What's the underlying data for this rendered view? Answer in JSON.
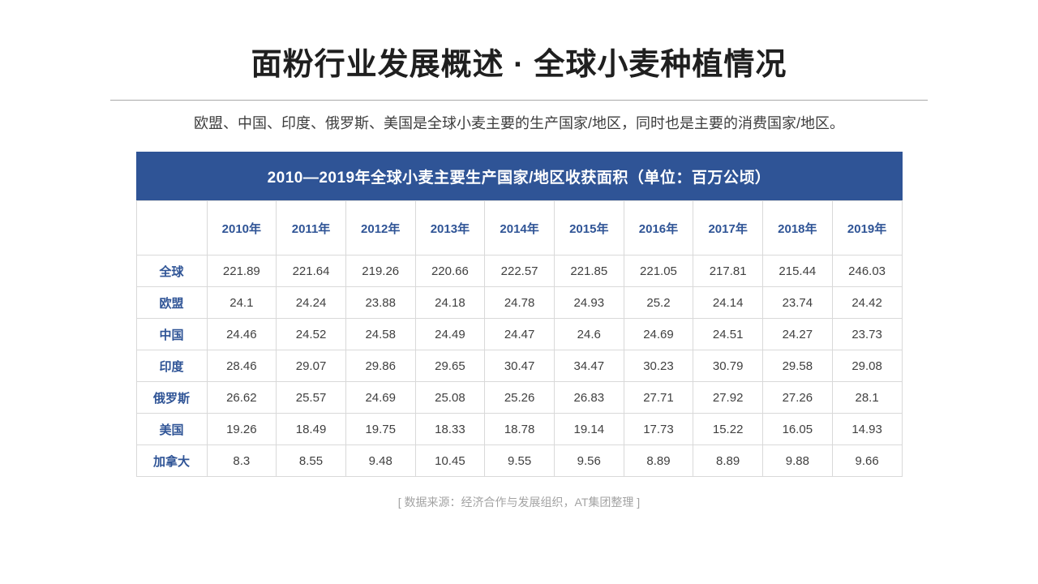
{
  "slide": {
    "title": "面粉行业发展概述 · 全球小麦种植情况",
    "subtitle": "欧盟、中国、印度、俄罗斯、美国是全球小麦主要的生产国家/地区，同时也是主要的消费国家/地区。",
    "source_note": "[ 数据来源：经济合作与发展组织，AT集团整理  ]"
  },
  "colors": {
    "banner_blue": "#2F5496",
    "header_text_blue": "#2F5496",
    "body_text": "#404040",
    "grid_line": "#d9d9d9",
    "note_gray": "#a3a3a3"
  },
  "chart_data": {
    "type": "table",
    "title": "2010—2019年全球小麦主要生产国家/地区收获面积（单位：百万公顷）",
    "columns": [
      "2010年",
      "2011年",
      "2012年",
      "2013年",
      "2014年",
      "2015年",
      "2016年",
      "2017年",
      "2018年",
      "2019年"
    ],
    "rows": [
      {
        "label": "全球",
        "values": [
          "221.89",
          "221.64",
          "219.26",
          "220.66",
          "222.57",
          "221.85",
          "221.05",
          "217.81",
          "215.44",
          "246.03"
        ]
      },
      {
        "label": "欧盟",
        "values": [
          "24.1",
          "24.24",
          "23.88",
          "24.18",
          "24.78",
          "24.93",
          "25.2",
          "24.14",
          "23.74",
          "24.42"
        ]
      },
      {
        "label": "中国",
        "values": [
          "24.46",
          "24.52",
          "24.58",
          "24.49",
          "24.47",
          "24.6",
          "24.69",
          "24.51",
          "24.27",
          "23.73"
        ]
      },
      {
        "label": "印度",
        "values": [
          "28.46",
          "29.07",
          "29.86",
          "29.65",
          "30.47",
          "34.47",
          "30.23",
          "30.79",
          "29.58",
          "29.08"
        ]
      },
      {
        "label": "俄罗斯",
        "values": [
          "26.62",
          "25.57",
          "24.69",
          "25.08",
          "25.26",
          "26.83",
          "27.71",
          "27.92",
          "27.26",
          "28.1"
        ]
      },
      {
        "label": "美国",
        "values": [
          "19.26",
          "18.49",
          "19.75",
          "18.33",
          "18.78",
          "19.14",
          "17.73",
          "15.22",
          "16.05",
          "14.93"
        ]
      },
      {
        "label": "加拿大",
        "values": [
          "8.3",
          "8.55",
          "9.48",
          "10.45",
          "9.55",
          "9.56",
          "8.89",
          "8.89",
          "9.88",
          "9.66"
        ]
      }
    ]
  }
}
